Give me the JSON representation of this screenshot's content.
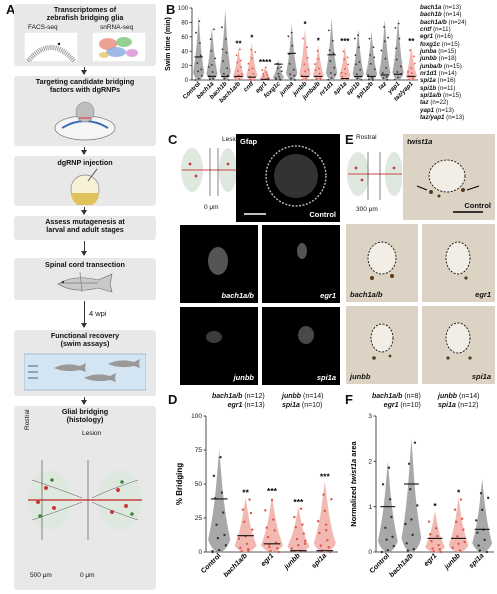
{
  "panel_labels": [
    "A",
    "B",
    "C",
    "D",
    "E",
    "F"
  ],
  "panelA": {
    "title": "Transcriptomes of zebrafish bridging glia",
    "facs_label": "FACS-seq",
    "snrna_label": "snRNA-seq",
    "step2": "Targeting candidate bridging factors with dgRNPs",
    "step3": "dgRNP injection",
    "step4": "Assess mutagenesis at larval and adult stages",
    "step5": "Spinal cord transection",
    "wpi": "4 wpi",
    "step6": "Functional recovery (swim assays)",
    "step7": "Glial bridging (histology)",
    "rostral": "Rostral",
    "lesion": "Lesion",
    "scale500": "500 μm",
    "scale0": "0 μm"
  },
  "panelB": {
    "ylabel": "Swim time (min)",
    "yticks": [
      "0",
      "20",
      "40",
      "60",
      "80",
      "100"
    ],
    "groups": [
      "Control",
      "bach1a",
      "bach1b",
      "bach1a/b",
      "cntf",
      "egr1",
      "foxg1c",
      "junba",
      "junbb",
      "junba/b",
      "nr1d1",
      "spi1a",
      "spi1b",
      "spi1a/b",
      "taz",
      "yap1",
      "taz/yap1"
    ],
    "significance": [
      "",
      "",
      "",
      "**",
      "*",
      "****",
      "",
      "",
      "*",
      "*",
      "",
      "***",
      "",
      "",
      "",
      "",
      "**"
    ],
    "legend": [
      {
        "name": "bach1a",
        "n": "(n=13)"
      },
      {
        "name": "bach1b",
        "n": "(n=14)"
      },
      {
        "name": "bach1a/b",
        "n": "(n=24)"
      },
      {
        "name": "cntf",
        "n": "(n=11)"
      },
      {
        "name": "egr1",
        "n": "(n=16)"
      },
      {
        "name": "foxg1c",
        "n": "(n=15)"
      },
      {
        "name": "junba",
        "n": "(n=15)"
      },
      {
        "name": "junbb",
        "n": "(n=18)"
      },
      {
        "name": "junba/b",
        "n": "(n=15)"
      },
      {
        "name": "nr1d1",
        "n": "(n=14)"
      },
      {
        "name": "spi1a",
        "n": "(n=16)"
      },
      {
        "name": "spi1b",
        "n": "(n=11)"
      },
      {
        "name": "spi1a/b",
        "n": "(n=15)"
      },
      {
        "name": "taz",
        "n": "(n=22)"
      },
      {
        "name": "yap1",
        "n": "(n=13)"
      },
      {
        "name": "taz/yap1",
        "n": "(n=13)"
      }
    ]
  },
  "panelC": {
    "lesion": "Lesion",
    "scale0": "0 μm",
    "gfap": "Gfap",
    "control": "Control",
    "tiles": [
      "bach1a/b",
      "egr1",
      "junbb",
      "spi1a"
    ]
  },
  "panelD": {
    "ylabel": "% Bridging",
    "yticks": [
      "0",
      "25",
      "50",
      "75",
      "100"
    ],
    "groups": [
      "Control",
      "bach1a/b",
      "egr1",
      "junbb",
      "spi1a"
    ],
    "significance": [
      "",
      "**",
      "***",
      "***",
      "***"
    ],
    "n_left": [
      {
        "name": "bach1a/b",
        "n": "(n=12)"
      },
      {
        "name": "egr1",
        "n": "(n=13)"
      }
    ],
    "n_right": [
      {
        "name": "junbb",
        "n": "(n=14)"
      },
      {
        "name": "spi1a",
        "n": "(n=10)"
      }
    ]
  },
  "panelE": {
    "rostral": "Rostral",
    "scale300": "300 μm",
    "twist": "twist1a",
    "control": "Control",
    "tiles": [
      "bach1a/b",
      "egr1",
      "junbb",
      "spi1a"
    ]
  },
  "panelF": {
    "ylabel_italic": "twist1a",
    "ylabel_pre": "Normalized ",
    "ylabel_post": " area",
    "yticks": [
      "0",
      "1",
      "2",
      "3"
    ],
    "groups": [
      "Control",
      "bach1a/b",
      "egr1",
      "junbb",
      "spi1a"
    ],
    "significance": [
      "",
      "",
      "*",
      "*",
      ""
    ],
    "n_left": [
      {
        "name": "bach1a/b",
        "n": "(n=8)"
      },
      {
        "name": "egr1",
        "n": "(n=10)"
      }
    ],
    "n_right": [
      {
        "name": "junbb",
        "n": "(n=14)"
      },
      {
        "name": "spi1a",
        "n": "(n=12)"
      }
    ]
  },
  "colors": {
    "grey_violin": "#a8a8a8",
    "red_violin": "#f2b9b2",
    "red_point": "#e0564a",
    "dark_point": "#333333"
  },
  "chart_data": [
    {
      "type": "violin",
      "panel": "B",
      "ylabel": "Swim time (min)",
      "ylim": [
        0,
        100
      ],
      "categories": [
        "Control",
        "bach1a",
        "bach1b",
        "bach1a/b",
        "cntf",
        "egr1",
        "foxg1c",
        "junba",
        "junbb",
        "junba/b",
        "nr1d1",
        "spi1a",
        "spi1b",
        "spi1a/b",
        "taz",
        "yap1",
        "taz/yap1"
      ],
      "median": [
        32,
        5,
        5,
        5,
        4,
        1,
        22,
        37,
        5,
        5,
        35,
        2,
        5,
        5,
        7,
        8,
        5
      ],
      "max": [
        88,
        73,
        98,
        44,
        52,
        18,
        28,
        78,
        71,
        48,
        85,
        47,
        71,
        68,
        84,
        86,
        47
      ],
      "highlighted": [
        false,
        false,
        false,
        true,
        true,
        true,
        false,
        false,
        true,
        true,
        false,
        true,
        false,
        false,
        false,
        false,
        true
      ]
    },
    {
      "type": "violin",
      "panel": "D",
      "ylabel": "% Bridging",
      "ylim": [
        0,
        100
      ],
      "categories": [
        "Control",
        "bach1a/b",
        "egr1",
        "junbb",
        "spi1a"
      ],
      "median": [
        39,
        12,
        6,
        1,
        1
      ],
      "max": [
        75,
        40,
        41,
        33,
        52
      ]
    },
    {
      "type": "violin",
      "panel": "F",
      "ylabel": "Normalized twist1a area",
      "ylim": [
        0,
        3
      ],
      "categories": [
        "Control",
        "bach1a/b",
        "egr1",
        "junbb",
        "spi1a"
      ],
      "median": [
        1.0,
        1.5,
        0.3,
        0.3,
        0.5
      ],
      "max": [
        2.0,
        2.5,
        0.9,
        1.2,
        1.6
      ]
    }
  ]
}
